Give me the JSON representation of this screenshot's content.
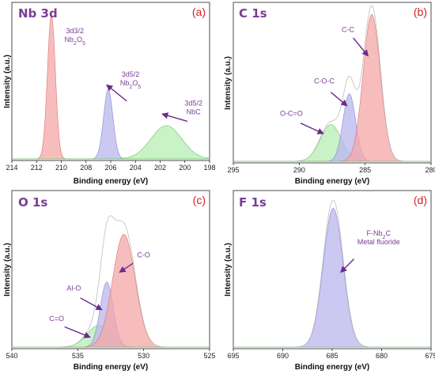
{
  "chart_data": [
    {
      "type": "area",
      "title": "Nb 3d",
      "panel_label": "(a)",
      "xlabel": "Binding energy (eV)",
      "ylabel": "Intensity (a.u.)",
      "xlim": [
        214,
        198
      ],
      "xticks": [
        214,
        212,
        210,
        208,
        206,
        204,
        202,
        200,
        198
      ],
      "ylim": [
        0,
        1.05
      ],
      "envelope": false,
      "series": [
        {
          "center": 210.8,
          "amp": 1.0,
          "sigma": 0.32,
          "fill": "#f4a7a7",
          "stroke": "#e07070"
        },
        {
          "center": 206.2,
          "amp": 0.48,
          "sigma": 0.38,
          "fill": "#b9b6ee",
          "stroke": "#8a86d8"
        },
        {
          "center": 201.5,
          "amp": 0.23,
          "sigma": 1.25,
          "fill": "#b7edb4",
          "stroke": "#6cc468"
        }
      ],
      "annotations": [
        {
          "lines": [
            "3d3/2",
            "Nb2O5"
          ],
          "x": 208.9,
          "y": 0.87
        },
        {
          "lines": [
            "3d5/2",
            "Nb2O5"
          ],
          "x": 204.4,
          "y": 0.57,
          "arrow_from": [
            204.7,
            0.4
          ],
          "arrow_to": [
            206.3,
            0.51
          ]
        },
        {
          "lines": [
            "3d5/2",
            "NbC"
          ],
          "x": 199.3,
          "y": 0.37,
          "arrow_from": [
            199.8,
            0.26
          ],
          "arrow_to": [
            201.8,
            0.31
          ]
        }
      ]
    },
    {
      "type": "area",
      "title": "C 1s",
      "panel_label": "(b)",
      "xlabel": "Binding energy (eV)",
      "ylabel": "Intensity (a.u.)",
      "xlim": [
        295,
        280
      ],
      "xticks": [
        295,
        290,
        285,
        280
      ],
      "ylim": [
        0,
        1.05
      ],
      "envelope": true,
      "series": [
        {
          "center": 287.6,
          "amp": 0.25,
          "sigma": 0.8,
          "fill": "#b7edb4",
          "stroke": "#6cc468"
        },
        {
          "center": 286.2,
          "amp": 0.46,
          "sigma": 0.48,
          "fill": "#b9b6ee",
          "stroke": "#8a86d8"
        },
        {
          "center": 284.5,
          "amp": 1.0,
          "sigma": 0.65,
          "fill": "#f4a7a7",
          "stroke": "#e07070"
        }
      ],
      "annotations": [
        {
          "lines": [
            "C-C"
          ],
          "x": 286.3,
          "y": 0.88,
          "arrow_from": [
            285.9,
            0.84
          ],
          "arrow_to": [
            284.8,
            0.72
          ]
        },
        {
          "lines": [
            "C-O-C"
          ],
          "x": 288.1,
          "y": 0.53,
          "arrow_from": [
            287.6,
            0.47
          ],
          "arrow_to": [
            286.4,
            0.38
          ]
        },
        {
          "lines": [
            "O-C=O"
          ],
          "x": 290.6,
          "y": 0.31,
          "arrow_from": [
            289.9,
            0.26
          ],
          "arrow_to": [
            288.2,
            0.19
          ]
        }
      ]
    },
    {
      "type": "area",
      "title": "O 1s",
      "panel_label": "(c)",
      "xlabel": "Binding energy (eV)",
      "ylabel": "Intensity (a.u.)",
      "xlim": [
        540,
        525
      ],
      "xticks": [
        540,
        535,
        530,
        525
      ],
      "ylim": [
        0,
        1.05
      ],
      "envelope": true,
      "series": [
        {
          "center": 533.4,
          "amp": 0.15,
          "sigma": 0.9,
          "fill": "#b7edb4",
          "stroke": "#6cc468"
        },
        {
          "center": 532.8,
          "amp": 0.45,
          "sigma": 0.5,
          "fill": "#b9b6ee",
          "stroke": "#8a86d8"
        },
        {
          "center": 531.5,
          "amp": 0.78,
          "sigma": 0.85,
          "fill": "#f4a7a7",
          "stroke": "#e07070"
        }
      ],
      "annotations": [
        {
          "lines": [
            "C-O"
          ],
          "x": 530.0,
          "y": 0.62,
          "arrow_from": [
            530.8,
            0.58
          ],
          "arrow_to": [
            531.8,
            0.52
          ]
        },
        {
          "lines": [
            "Al-O"
          ],
          "x": 535.3,
          "y": 0.39,
          "arrow_from": [
            534.8,
            0.34
          ],
          "arrow_to": [
            533.2,
            0.26
          ]
        },
        {
          "lines": [
            "C=O"
          ],
          "x": 536.6,
          "y": 0.18,
          "arrow_from": [
            536.0,
            0.14
          ],
          "arrow_to": [
            534.1,
            0.07
          ]
        }
      ]
    },
    {
      "type": "area",
      "title": "F 1s",
      "panel_label": "(d)",
      "xlabel": "Binding energy (eV)",
      "ylabel": "Intensity (a.u.)",
      "xlim": [
        695,
        675
      ],
      "xticks": [
        695,
        690,
        685,
        680,
        675
      ],
      "ylim": [
        0,
        1.05
      ],
      "envelope": true,
      "series": [
        {
          "center": 684.9,
          "amp": 0.96,
          "sigma": 1.0,
          "fill": "#b9b6ee",
          "stroke": "#8a86d8"
        }
      ],
      "annotations": [
        {
          "lines": [
            "F-Nb2C",
            "Metal fluoride"
          ],
          "x": 680.3,
          "y": 0.77,
          "arrow_from": [
            682.8,
            0.61
          ],
          "arrow_to": [
            684.1,
            0.52
          ]
        }
      ]
    }
  ]
}
